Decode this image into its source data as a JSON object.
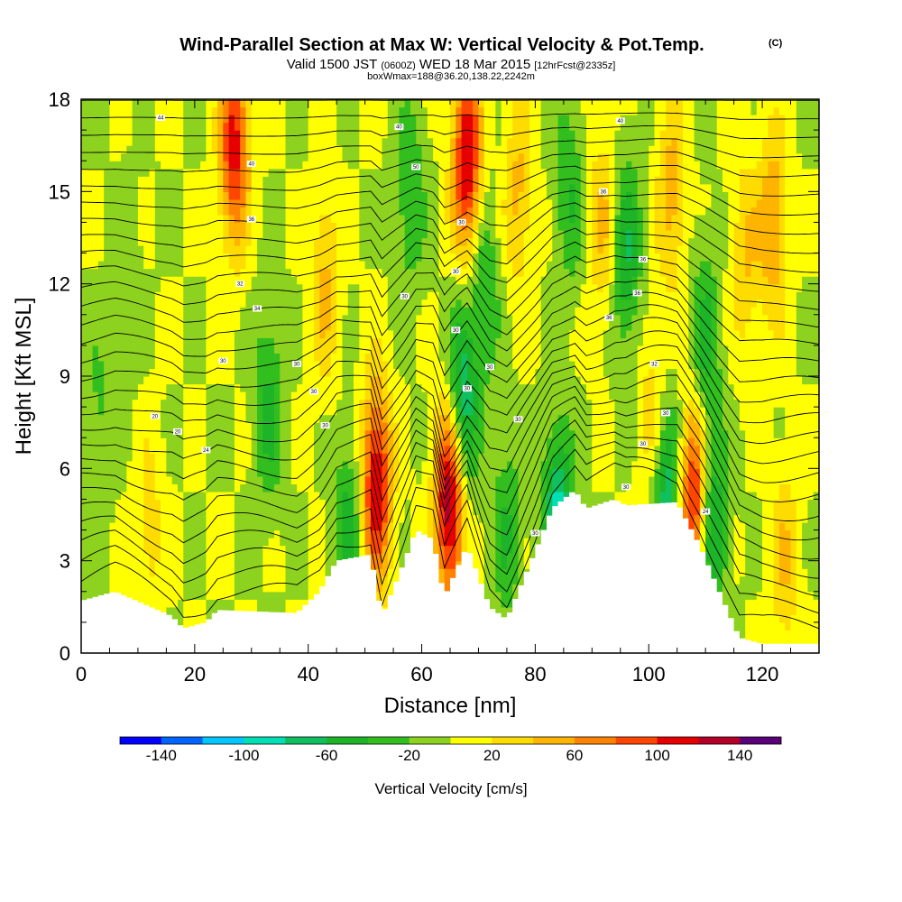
{
  "chart_data": {
    "type": "heatmap",
    "title": "Wind-Parallel Section at Max W: Vertical Velocity & Pot.Temp.",
    "title_mark": "(C)",
    "subtitle_parts": [
      "Valid 1500 JST",
      "(0600Z)",
      "WED 18 Mar 2015",
      "[12hrFcst@2335z]"
    ],
    "info_line": "boxWmax=188@36.20,138.22,2242m",
    "xlabel": "Distance [nm]",
    "ylabel": "Height [Kft MSL]",
    "xlim": [
      0,
      130
    ],
    "ylim": [
      0,
      18
    ],
    "x_ticks": [
      "0",
      "20",
      "40",
      "60",
      "80",
      "100",
      "120"
    ],
    "y_ticks": [
      "0",
      "3",
      "6",
      "9",
      "12",
      "15",
      "18"
    ],
    "colorbar": {
      "label": "Vertical Velocity [cm/s]",
      "tick_labels": [
        "-140",
        "-100",
        "-60",
        "-20",
        "20",
        "60",
        "100",
        "140"
      ],
      "levels": [
        -160,
        -140,
        -120,
        -100,
        -80,
        -60,
        -40,
        -20,
        0,
        20,
        40,
        60,
        80,
        100,
        120,
        140,
        160
      ],
      "colors": [
        "#0000ff",
        "#0064ff",
        "#00c8ff",
        "#00e0b4",
        "#10c060",
        "#1eb428",
        "#32be1e",
        "#8cd21e",
        "#ffff00",
        "#ffdc00",
        "#ffb400",
        "#ff8200",
        "#ff4600",
        "#e60000",
        "#b40028",
        "#5a0078"
      ]
    },
    "terrain_profile": {
      "x_nm": [
        0,
        6,
        16,
        18,
        22,
        24,
        38,
        42,
        45,
        51,
        53,
        57,
        59,
        62,
        64,
        68,
        72,
        75,
        80,
        83,
        87,
        89,
        94,
        96,
        105,
        109,
        112,
        116,
        120,
        130
      ],
      "height_kft": [
        1.7,
        2.0,
        1.2,
        0.8,
        1.0,
        1.4,
        1.3,
        2.0,
        3.0,
        3.2,
        1.2,
        3.0,
        4.0,
        3.7,
        1.8,
        3.5,
        1.5,
        1.1,
        3.3,
        4.7,
        5.3,
        4.7,
        5.0,
        4.8,
        4.9,
        3.5,
        2.2,
        0.5,
        0.3,
        0.3
      ]
    },
    "vertical_velocity_features": [
      {
        "x_nm": 27,
        "z_kft": 16.5,
        "w_cms": 110
      },
      {
        "x_nm": 33,
        "z_kft": 8.0,
        "w_cms": -45
      },
      {
        "x_nm": 43,
        "z_kft": 12.0,
        "w_cms": 45
      },
      {
        "x_nm": 47,
        "z_kft": 4.0,
        "w_cms": -50
      },
      {
        "x_nm": 52,
        "z_kft": 5.5,
        "w_cms": 125
      },
      {
        "x_nm": 58,
        "z_kft": 15.0,
        "w_cms": -40
      },
      {
        "x_nm": 65,
        "z_kft": 5.0,
        "w_cms": 150
      },
      {
        "x_nm": 67,
        "z_kft": 8.0,
        "w_cms": -90
      },
      {
        "x_nm": 68,
        "z_kft": 16.0,
        "w_cms": 125
      },
      {
        "x_nm": 71,
        "z_kft": 12.0,
        "w_cms": -45
      },
      {
        "x_nm": 75,
        "z_kft": 4.0,
        "w_cms": -40
      },
      {
        "x_nm": 77,
        "z_kft": 15.0,
        "w_cms": 45
      },
      {
        "x_nm": 84,
        "z_kft": 4.0,
        "w_cms": -95
      },
      {
        "x_nm": 86,
        "z_kft": 15.0,
        "w_cms": -40
      },
      {
        "x_nm": 92,
        "z_kft": 14.0,
        "w_cms": 45
      },
      {
        "x_nm": 96,
        "z_kft": 13.0,
        "w_cms": -60
      },
      {
        "x_nm": 101,
        "z_kft": 7.5,
        "w_cms": 45
      },
      {
        "x_nm": 103,
        "z_kft": 5.3,
        "w_cms": -85
      },
      {
        "x_nm": 104,
        "z_kft": 15.0,
        "w_cms": 50
      },
      {
        "x_nm": 108,
        "z_kft": 5.0,
        "w_cms": 120
      },
      {
        "x_nm": 110,
        "z_kft": 10.0,
        "w_cms": -50
      },
      {
        "x_nm": 111,
        "z_kft": 4.0,
        "w_cms": -75
      },
      {
        "x_nm": 117,
        "z_kft": 13.0,
        "w_cms": 40
      },
      {
        "x_nm": 122,
        "z_kft": 14.0,
        "w_cms": 60
      },
      {
        "x_nm": 124,
        "z_kft": 3.0,
        "w_cms": 40
      },
      {
        "x_nm": 12,
        "z_kft": 4.0,
        "w_cms": 30
      },
      {
        "x_nm": 8,
        "z_kft": 12.0,
        "w_cms": -15
      },
      {
        "x_nm": 3,
        "z_kft": 7.5,
        "w_cms": -25
      }
    ],
    "theta_contour_labels": [
      {
        "x_nm": 14,
        "z_kft": 17.4,
        "label": "44"
      },
      {
        "x_nm": 30,
        "z_kft": 15.9,
        "label": "40"
      },
      {
        "x_nm": 30,
        "z_kft": 14.1,
        "label": "36"
      },
      {
        "x_nm": 28,
        "z_kft": 12.0,
        "label": "32"
      },
      {
        "x_nm": 31,
        "z_kft": 11.2,
        "label": "34"
      },
      {
        "x_nm": 25,
        "z_kft": 9.5,
        "label": "30"
      },
      {
        "x_nm": 38,
        "z_kft": 9.4,
        "label": "30"
      },
      {
        "x_nm": 41,
        "z_kft": 8.5,
        "label": "30"
      },
      {
        "x_nm": 13,
        "z_kft": 7.7,
        "label": "20"
      },
      {
        "x_nm": 17,
        "z_kft": 7.2,
        "label": "20"
      },
      {
        "x_nm": 22,
        "z_kft": 6.6,
        "label": "24"
      },
      {
        "x_nm": 43,
        "z_kft": 7.4,
        "label": "30"
      },
      {
        "x_nm": 56,
        "z_kft": 17.1,
        "label": "40"
      },
      {
        "x_nm": 59,
        "z_kft": 15.8,
        "label": "50"
      },
      {
        "x_nm": 67,
        "z_kft": 14.0,
        "label": "30"
      },
      {
        "x_nm": 66,
        "z_kft": 12.4,
        "label": "30"
      },
      {
        "x_nm": 57,
        "z_kft": 11.6,
        "label": "30"
      },
      {
        "x_nm": 66,
        "z_kft": 10.5,
        "label": "30"
      },
      {
        "x_nm": 72,
        "z_kft": 9.3,
        "label": "30"
      },
      {
        "x_nm": 68,
        "z_kft": 8.6,
        "label": "30"
      },
      {
        "x_nm": 77,
        "z_kft": 7.6,
        "label": "30"
      },
      {
        "x_nm": 95,
        "z_kft": 17.3,
        "label": "40"
      },
      {
        "x_nm": 92,
        "z_kft": 15.0,
        "label": "36"
      },
      {
        "x_nm": 99,
        "z_kft": 12.8,
        "label": "36"
      },
      {
        "x_nm": 98,
        "z_kft": 11.7,
        "label": "36"
      },
      {
        "x_nm": 93,
        "z_kft": 10.9,
        "label": "36"
      },
      {
        "x_nm": 101,
        "z_kft": 9.4,
        "label": "32"
      },
      {
        "x_nm": 103,
        "z_kft": 7.8,
        "label": "30"
      },
      {
        "x_nm": 99,
        "z_kft": 6.8,
        "label": "30"
      },
      {
        "x_nm": 96,
        "z_kft": 5.4,
        "label": "30"
      },
      {
        "x_nm": 80,
        "z_kft": 3.9,
        "label": "30"
      },
      {
        "x_nm": 110,
        "z_kft": 4.6,
        "label": "24"
      }
    ]
  }
}
